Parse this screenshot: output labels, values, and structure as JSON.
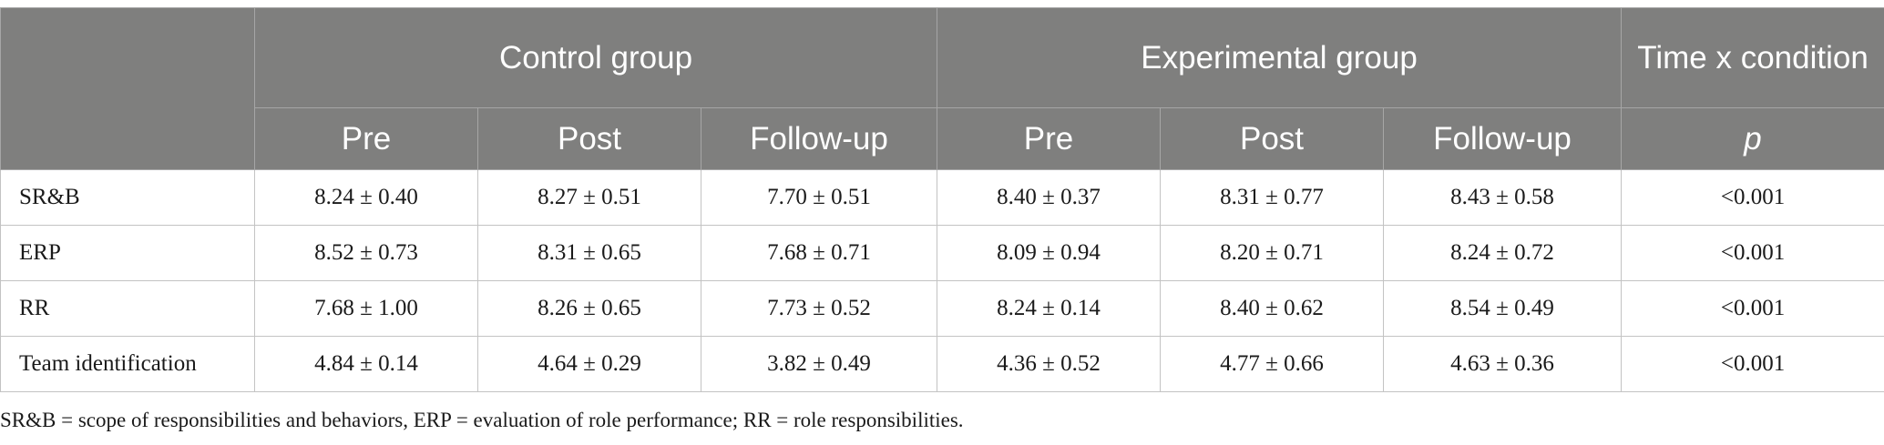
{
  "table": {
    "group_headers": {
      "control": "Control group",
      "experimental": "Experimental group",
      "interaction": "Time x condition"
    },
    "sub_headers": [
      "Pre",
      "Post",
      "Follow-up",
      "Pre",
      "Post",
      "Follow-up",
      "p"
    ],
    "rows": [
      {
        "label": "SR&B",
        "cells": [
          "8.24 ± 0.40",
          "8.27 ± 0.51",
          "7.70 ± 0.51",
          "8.40 ± 0.37",
          "8.31 ± 0.77",
          "8.43 ± 0.58",
          "<0.001"
        ]
      },
      {
        "label": "ERP",
        "cells": [
          "8.52 ± 0.73",
          "8.31 ± 0.65",
          "7.68 ± 0.71",
          "8.09 ± 0.94",
          "8.20 ± 0.71",
          "8.24 ± 0.72",
          "<0.001"
        ]
      },
      {
        "label": "RR",
        "cells": [
          "7.68 ± 1.00",
          "8.26 ± 0.65",
          "7.73 ± 0.52",
          "8.24 ± 0.14",
          "8.40 ± 0.62",
          "8.54 ± 0.49",
          "<0.001"
        ]
      },
      {
        "label": "Team identification",
        "cells": [
          "4.84 ± 0.14",
          "4.64 ± 0.29",
          "3.82 ± 0.49",
          "4.36 ± 0.52",
          "4.77 ± 0.66",
          "4.63 ± 0.36",
          "<0.001"
        ]
      }
    ]
  },
  "footnote": "SR&B = scope of responsibilities and behaviors, ERP = evaluation of role performance; RR = role responsibilities.",
  "colors": {
    "header_background": "#7f7f7e",
    "header_text": "#ffffff",
    "grid_line": "#c3c3c3"
  }
}
